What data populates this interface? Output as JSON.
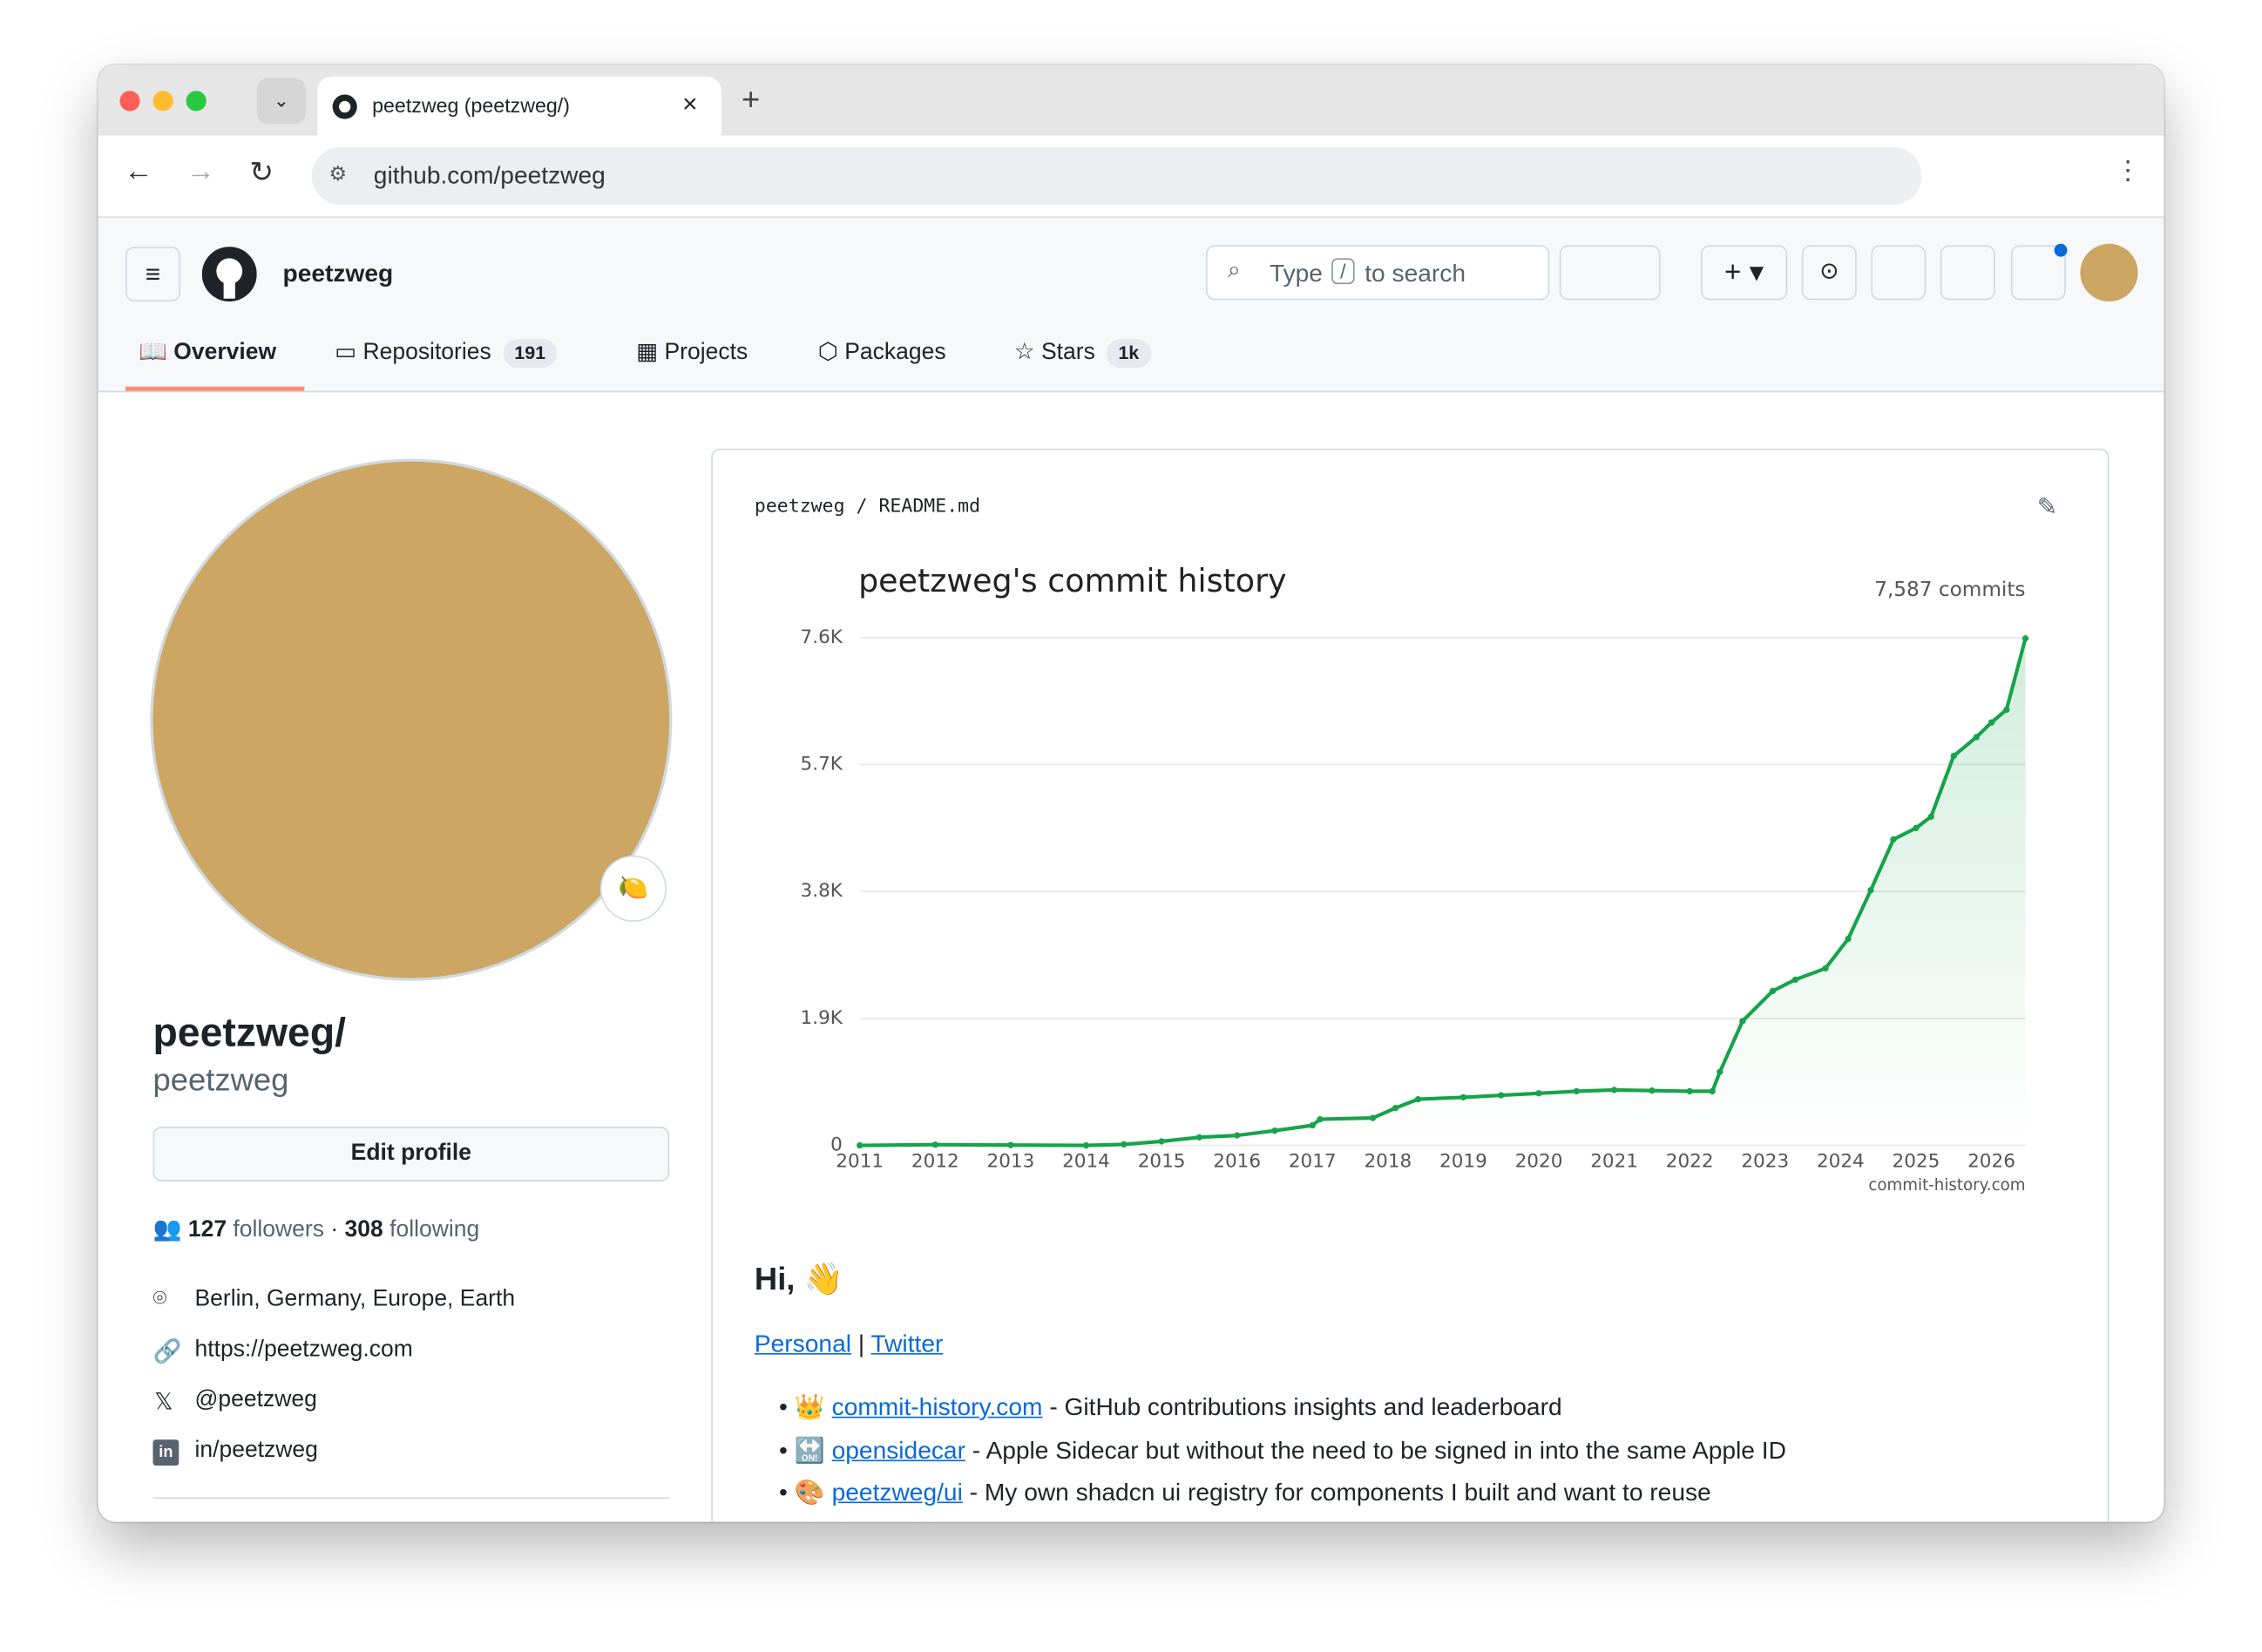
{
  "browser": {
    "tab_title": "peetzweg (peetzweg/)",
    "url": "github.com/peetzweg"
  },
  "header": {
    "username": "peetzweg",
    "search_pre": "Type",
    "search_key": "/",
    "search_post": "to search"
  },
  "nav": [
    {
      "label": "Overview"
    },
    {
      "label": "Repositories",
      "count": 191
    },
    {
      "label": "Projects"
    },
    {
      "label": "Packages"
    },
    {
      "label": "Stars",
      "count": "1k"
    }
  ],
  "profile": {
    "name": "peetzweg/",
    "login": "peetzweg",
    "status_emoji": "🍋",
    "edit_button": "Edit profile",
    "followers": 127,
    "followers_label": "followers",
    "separator": "·",
    "following": 308,
    "following_label": "following",
    "details": [
      "Berlin, Germany, Europe, Earth",
      "https://peetzweg.com",
      "@peetzweg",
      "in/peetzweg"
    ]
  },
  "readme": {
    "owner": "peetzweg",
    "slash": "/",
    "file": "README.md",
    "greeting": "Hi, 👋",
    "links": [
      "Personal",
      "Twitter"
    ],
    "link_separator": "|",
    "items": [
      {
        "emoji": "👑",
        "link": "commit-history.com",
        "text": "- GitHub contributions insights and leaderboard"
      },
      {
        "emoji": "🔛",
        "link": "opensidecar",
        "text": "- Apple Sidecar but without the need to be signed in into the same Apple ID"
      },
      {
        "emoji": "🎨",
        "link": "peetzweg/ui",
        "text": "- My own shadcn ui registry for components I built and want to reuse"
      }
    ]
  },
  "chart_data": {
    "type": "line",
    "title": "peetzweg's commit history",
    "annotation": "7,587 commits",
    "source": "commit-history.com",
    "x": [
      2011,
      2012,
      2013,
      2014,
      2014.5,
      2015,
      2015.5,
      2016,
      2016.5,
      2017,
      2017.1,
      2017.8,
      2018.1,
      2018.4,
      2019,
      2019.5,
      2020,
      2020.5,
      2021,
      2021.5,
      2022,
      2022.3,
      2022.4,
      2022.7,
      2023.1,
      2023.4,
      2023.8,
      2024.1,
      2024.4,
      2024.7,
      2025,
      2025.2,
      2025.5,
      2025.8,
      2026,
      2026.2,
      2026.45
    ],
    "series": [
      {
        "name": "commits",
        "color": "#16a34a",
        "values": [
          0,
          10,
          5,
          0,
          15,
          60,
          120,
          150,
          220,
          300,
          390,
          410,
          560,
          690,
          720,
          750,
          780,
          810,
          830,
          820,
          810,
          810,
          1100,
          1860,
          2310,
          2480,
          2650,
          3090,
          3820,
          4580,
          4750,
          4920,
          5830,
          6110,
          6330,
          6520,
          7587
        ]
      }
    ],
    "xlim": [
      2011,
      2026.45
    ],
    "ylim": [
      0,
      7600
    ],
    "xticks": [
      2011,
      2012,
      2013,
      2014,
      2015,
      2016,
      2017,
      2018,
      2019,
      2020,
      2021,
      2022,
      2023,
      2024,
      2025,
      2026
    ],
    "yticks": [
      0,
      {
        "value": 1900,
        "label": "1.9K"
      },
      {
        "value": 3800,
        "label": "3.8K"
      },
      {
        "value": 5700,
        "label": "5.7K"
      },
      {
        "value": 7600,
        "label": "7.6K"
      }
    ],
    "grid": true
  }
}
